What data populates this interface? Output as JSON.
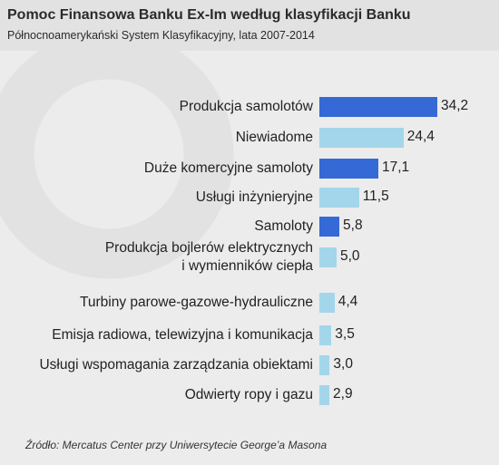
{
  "chart_data": {
    "type": "bar",
    "orientation": "horizontal",
    "title": "Pomoc Finansowa Banku Ex-Im według klasyfikacji Banku",
    "subtitle": "Północnoamerykański System Klasyfikacyjny, lata 2007-2014",
    "categories": [
      "Produkcja samolotów",
      "Niewiadome",
      "Duże komercyjne samoloty",
      "Usługi inżynieryjne",
      "Samoloty",
      "Produkcja bojlerów elektrycznych\ni wymienników ciepła",
      "Turbiny parowe-gazowe-hydrauliczne",
      "Emisja radiowa, telewizyjna i komunikacja",
      "Usługi wspomagania zarządzania obiektami",
      "Odwierty ropy i gazu"
    ],
    "values": [
      34.2,
      24.4,
      17.1,
      11.5,
      5.8,
      5.0,
      4.4,
      3.5,
      3.0,
      2.9
    ],
    "value_labels": [
      "34,2",
      "24,4",
      "17,1",
      "11,5",
      "5,8",
      "5,0",
      "4,4",
      "3,5",
      "3,0",
      "2,9"
    ],
    "colors": [
      "#3469d6",
      "#a3d6ea",
      "#3469d6",
      "#a3d6ea",
      "#3469d6",
      "#a3d6ea",
      "#a3d6ea",
      "#a3d6ea",
      "#a3d6ea",
      "#a3d6ea"
    ],
    "source": "Źródło: Mercatus Center przy Uniwersytecie George’a Masona"
  }
}
